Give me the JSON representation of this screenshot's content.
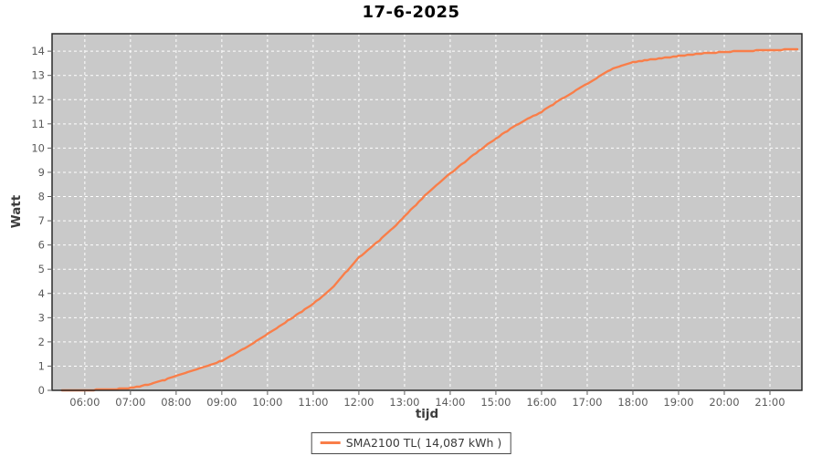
{
  "title": "17-6-2025",
  "legend": {
    "label": "SMA2100 TL( 14,087 kWh )"
  },
  "colors": {
    "page_bg": "#ffffff",
    "plot_bg": "#c9c9c9",
    "grid": "#ffffff",
    "series": "#f97e49",
    "plot_border": "#2a2a2a",
    "tick_text": "#5b5b5b",
    "axis_label_text": "#3c3c3c",
    "legend_border": "#4a4a4a"
  },
  "chart_data": {
    "type": "line",
    "title": "17-6-2025",
    "xlabel": "tijd",
    "ylabel": "Watt",
    "x_ticks": [
      "06:00",
      "07:00",
      "08:00",
      "09:00",
      "10:00",
      "11:00",
      "12:00",
      "13:00",
      "14:00",
      "15:00",
      "16:00",
      "17:00",
      "18:00",
      "19:00",
      "20:00",
      "21:00"
    ],
    "y_ticks": [
      0,
      1,
      2,
      3,
      4,
      5,
      6,
      7,
      8,
      9,
      10,
      11,
      12,
      13,
      14
    ],
    "x_range_minutes": [
      317,
      1302
    ],
    "ylim": [
      0,
      14.72
    ],
    "grid": "white-dashed",
    "legend_position": "bottom-center",
    "series": [
      {
        "name": "SMA2100 TL( 14,087 kWh )",
        "color": "#f97e49",
        "total_label": "14,087 kWh",
        "points": [
          [
            "05:30",
            0.0
          ],
          [
            "05:45",
            0.005
          ],
          [
            "06:00",
            0.01
          ],
          [
            "06:15",
            0.02
          ],
          [
            "06:30",
            0.035
          ],
          [
            "06:45",
            0.06
          ],
          [
            "07:00",
            0.1
          ],
          [
            "07:15",
            0.18
          ],
          [
            "07:30",
            0.29
          ],
          [
            "07:45",
            0.43
          ],
          [
            "08:00",
            0.6
          ],
          [
            "08:15",
            0.74
          ],
          [
            "08:30",
            0.9
          ],
          [
            "08:45",
            1.05
          ],
          [
            "09:00",
            1.22
          ],
          [
            "09:15",
            1.47
          ],
          [
            "09:30",
            1.75
          ],
          [
            "09:45",
            2.03
          ],
          [
            "10:00",
            2.33
          ],
          [
            "10:15",
            2.63
          ],
          [
            "10:30",
            2.95
          ],
          [
            "10:45",
            3.25
          ],
          [
            "11:00",
            3.57
          ],
          [
            "11:15",
            3.95
          ],
          [
            "11:30",
            4.4
          ],
          [
            "11:45",
            4.95
          ],
          [
            "12:00",
            5.48
          ],
          [
            "12:15",
            5.88
          ],
          [
            "12:30",
            6.27
          ],
          [
            "12:45",
            6.7
          ],
          [
            "13:00",
            7.18
          ],
          [
            "13:15",
            7.66
          ],
          [
            "13:30",
            8.15
          ],
          [
            "13:45",
            8.55
          ],
          [
            "14:00",
            8.95
          ],
          [
            "14:15",
            9.33
          ],
          [
            "14:30",
            9.7
          ],
          [
            "14:45",
            10.06
          ],
          [
            "15:00",
            10.4
          ],
          [
            "15:15",
            10.71
          ],
          [
            "15:30",
            11.0
          ],
          [
            "15:45",
            11.26
          ],
          [
            "16:00",
            11.5
          ],
          [
            "16:15",
            11.8
          ],
          [
            "16:30",
            12.1
          ],
          [
            "16:45",
            12.38
          ],
          [
            "17:00",
            12.65
          ],
          [
            "17:15",
            12.95
          ],
          [
            "17:30",
            13.22
          ],
          [
            "17:45",
            13.42
          ],
          [
            "18:00",
            13.55
          ],
          [
            "18:15",
            13.62
          ],
          [
            "18:30",
            13.68
          ],
          [
            "18:45",
            13.74
          ],
          [
            "19:00",
            13.8
          ],
          [
            "19:15",
            13.86
          ],
          [
            "19:30",
            13.9
          ],
          [
            "19:45",
            13.94
          ],
          [
            "20:00",
            13.97
          ],
          [
            "20:15",
            13.99
          ],
          [
            "20:30",
            14.01
          ],
          [
            "20:45",
            14.03
          ],
          [
            "21:00",
            14.05
          ],
          [
            "21:15",
            14.06
          ],
          [
            "21:30",
            14.08
          ],
          [
            "21:36",
            14.087
          ]
        ]
      }
    ]
  }
}
